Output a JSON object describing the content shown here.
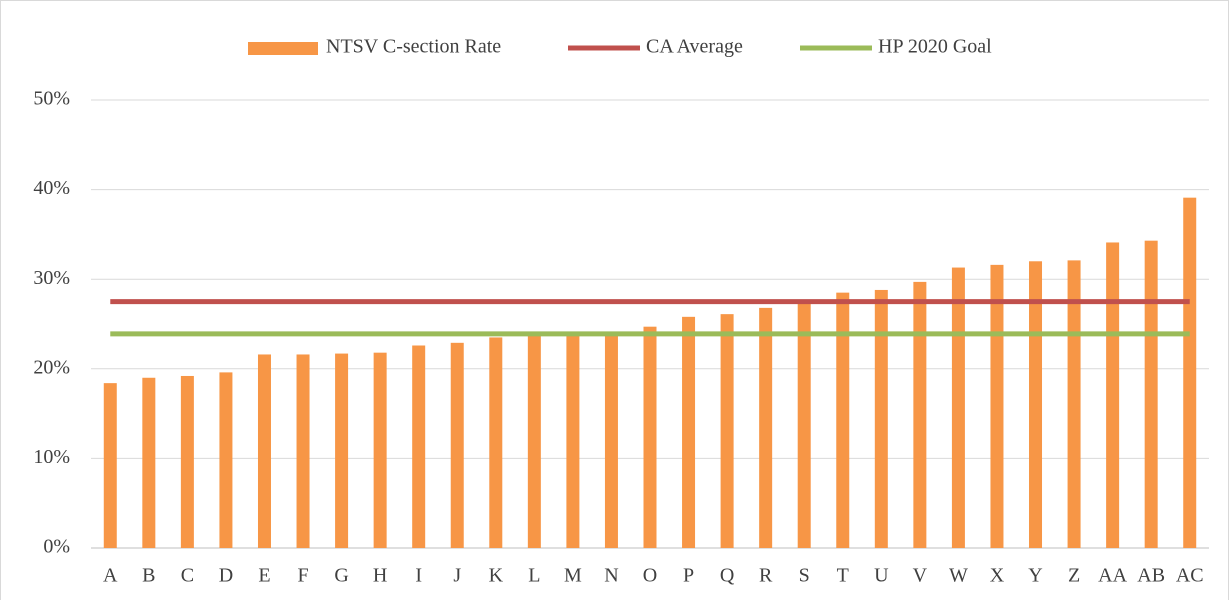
{
  "chart_data": {
    "type": "bar",
    "categories": [
      "A",
      "B",
      "C",
      "D",
      "E",
      "F",
      "G",
      "H",
      "I",
      "J",
      "K",
      "L",
      "M",
      "N",
      "O",
      "P",
      "Q",
      "R",
      "S",
      "T",
      "U",
      "V",
      "W",
      "X",
      "Y",
      "Z",
      "AA",
      "AB",
      "AC"
    ],
    "series": [
      {
        "name": "NTSV C-section Rate",
        "color": "#f79646",
        "type": "bar",
        "values": [
          18.4,
          19.0,
          19.2,
          19.6,
          21.6,
          21.6,
          21.7,
          21.8,
          22.6,
          22.9,
          23.5,
          23.7,
          23.8,
          23.9,
          24.7,
          25.8,
          26.1,
          26.8,
          27.5,
          28.5,
          28.8,
          29.7,
          31.3,
          31.6,
          32.0,
          32.1,
          34.1,
          34.3,
          39.1
        ]
      },
      {
        "name": "CA Average",
        "color": "#c0504d",
        "type": "line",
        "values": [
          27.5,
          27.5,
          27.5,
          27.5,
          27.5,
          27.5,
          27.5,
          27.5,
          27.5,
          27.5,
          27.5,
          27.5,
          27.5,
          27.5,
          27.5,
          27.5,
          27.5,
          27.5,
          27.5,
          27.5,
          27.5,
          27.5,
          27.5,
          27.5,
          27.5,
          27.5,
          27.5,
          27.5,
          27.5
        ]
      },
      {
        "name": "HP 2020 Goal",
        "color": "#9bbb59",
        "type": "line",
        "values": [
          23.9,
          23.9,
          23.9,
          23.9,
          23.9,
          23.9,
          23.9,
          23.9,
          23.9,
          23.9,
          23.9,
          23.9,
          23.9,
          23.9,
          23.9,
          23.9,
          23.9,
          23.9,
          23.9,
          23.9,
          23.9,
          23.9,
          23.9,
          23.9,
          23.9,
          23.9,
          23.9,
          23.9,
          23.9
        ]
      }
    ],
    "ylim": [
      0,
      50
    ],
    "yticks": [
      {
        "value": 0,
        "label": "0%"
      },
      {
        "value": 10,
        "label": "10%"
      },
      {
        "value": 20,
        "label": "20%"
      },
      {
        "value": 30,
        "label": "30%"
      },
      {
        "value": 40,
        "label": "40%"
      },
      {
        "value": 50,
        "label": "50%"
      }
    ],
    "grid": true,
    "legend": "top"
  }
}
